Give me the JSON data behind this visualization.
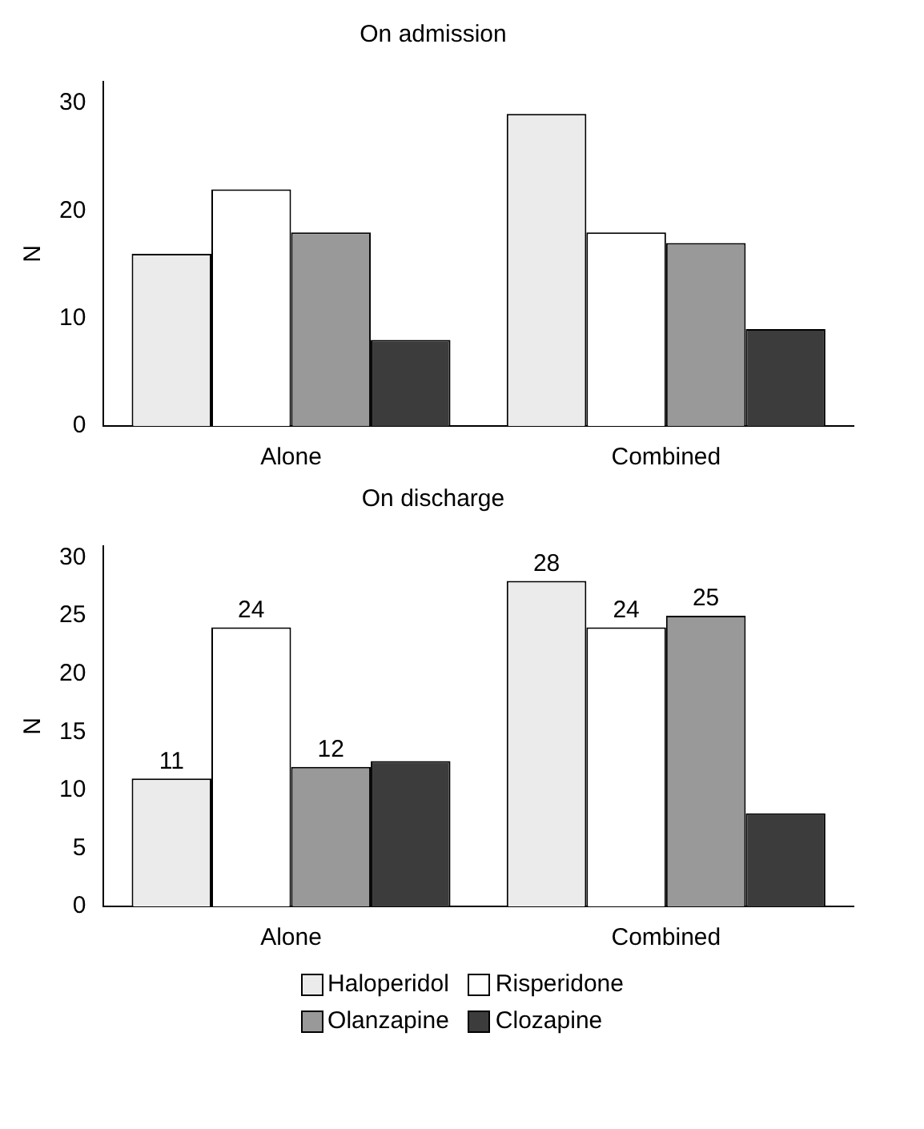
{
  "chart_data": [
    {
      "type": "bar",
      "title": "On admission",
      "ylabel": "N",
      "categories": [
        "Alone",
        "Combined"
      ],
      "ylim": [
        0,
        32
      ],
      "yticks": [
        0,
        10,
        20,
        30
      ],
      "series": [
        {
          "color": "#ebebeb",
          "values": [
            16,
            29
          ]
        },
        {
          "color": "#ffffff",
          "values": [
            22,
            18
          ]
        },
        {
          "color": "#999999",
          "values": [
            18,
            17
          ]
        },
        {
          "color": "#3c3c3c",
          "values": [
            8,
            9
          ]
        }
      ],
      "legend": false
    },
    {
      "type": "bar",
      "title": "On discharge",
      "ylabel": "N",
      "categories": [
        "Alone",
        "Combined"
      ],
      "ylim": [
        0,
        31
      ],
      "yticks": [
        0,
        5,
        10,
        15,
        20,
        25,
        30
      ],
      "series": [
        {
          "name": "Haloperidol",
          "color": "#ebebeb",
          "values": [
            11,
            28
          ],
          "value_labels": [
            "11",
            "28"
          ]
        },
        {
          "name": "Risperidone",
          "color": "#ffffff",
          "values": [
            24,
            24
          ],
          "value_labels": [
            "24",
            "24"
          ]
        },
        {
          "name": "Olanzapine",
          "color": "#999999",
          "values": [
            12,
            25
          ],
          "value_labels": [
            "12",
            "25"
          ]
        },
        {
          "name": "Clozapine",
          "color": "#3c3c3c",
          "values": [
            12.5,
            8
          ],
          "value_labels": [
            null,
            null
          ]
        }
      ],
      "legend": "bottom"
    }
  ]
}
